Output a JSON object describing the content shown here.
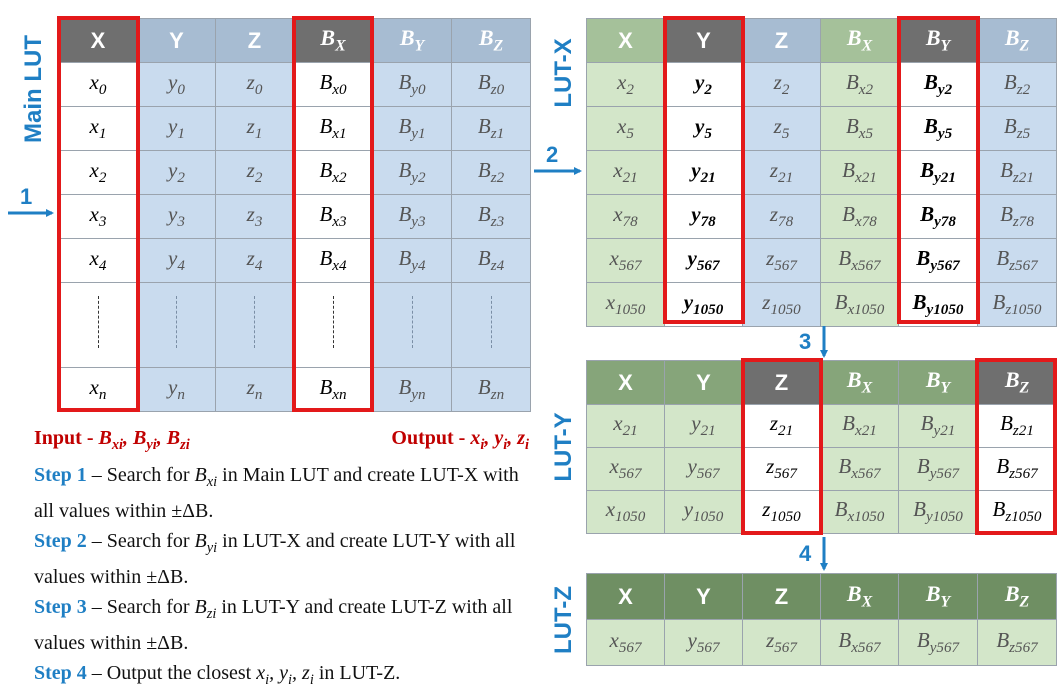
{
  "main_lut": {
    "label": "Main LUT",
    "headers": [
      "X",
      "Y",
      "Z",
      "B_X",
      "B_Y",
      "B_Z"
    ],
    "rows": [
      [
        "x_0",
        "y_0",
        "z_0",
        "B_x0",
        "B_y0",
        "B_z0"
      ],
      [
        "x_1",
        "y_1",
        "z_1",
        "B_x1",
        "B_y1",
        "B_z1"
      ],
      [
        "x_2",
        "y_2",
        "z_2",
        "B_x2",
        "B_y2",
        "B_z2"
      ],
      [
        "x_3",
        "y_3",
        "z_3",
        "B_x3",
        "B_y3",
        "B_z3"
      ],
      [
        "x_4",
        "y_4",
        "z_4",
        "B_x4",
        "B_y4",
        "B_z4"
      ]
    ],
    "last_row": [
      "x_n",
      "y_n",
      "z_n",
      "B_xn",
      "B_yn",
      "B_zn"
    ]
  },
  "lut_x": {
    "label": "LUT-X",
    "headers": [
      "X",
      "Y",
      "Z",
      "B_X",
      "B_Y",
      "B_Z"
    ],
    "rows": [
      [
        "x_2",
        "y_2",
        "z_2",
        "B_x2",
        "B_y2",
        "B_z2"
      ],
      [
        "x_5",
        "y_5",
        "z_5",
        "B_x5",
        "B_y5",
        "B_z5"
      ],
      [
        "x_21",
        "y_21",
        "z_21",
        "B_x21",
        "B_y21",
        "B_z21"
      ],
      [
        "x_78",
        "y_78",
        "z_78",
        "B_x78",
        "B_y78",
        "B_z78"
      ],
      [
        "x_567",
        "y_567",
        "z_567",
        "B_x567",
        "B_y567",
        "B_z567"
      ],
      [
        "x_1050",
        "y_1050",
        "z_1050",
        "B_x1050",
        "B_y1050",
        "B_z1050"
      ]
    ]
  },
  "lut_y": {
    "label": "LUT-Y",
    "headers": [
      "X",
      "Y",
      "Z",
      "B_X",
      "B_Y",
      "B_Z"
    ],
    "rows": [
      [
        "x_21",
        "y_21",
        "z_21",
        "B_x21",
        "B_y21",
        "B_z21"
      ],
      [
        "x_567",
        "y_567",
        "z_567",
        "B_x567",
        "B_y567",
        "B_z567"
      ],
      [
        "x_1050",
        "y_1050",
        "z_1050",
        "B_x1050",
        "B_y1050",
        "B_z1050"
      ]
    ]
  },
  "lut_z": {
    "label": "LUT-Z",
    "headers": [
      "X",
      "Y",
      "Z",
      "B_X",
      "B_Y",
      "B_Z"
    ],
    "rows": [
      [
        "x_567",
        "y_567",
        "z_567",
        "B_x567",
        "B_y567",
        "B_z567"
      ]
    ]
  },
  "step_numbers": [
    "1",
    "2",
    "3",
    "4"
  ],
  "notes": {
    "input_label": "Input -",
    "input_vars": "B_xi, B_yi, B_zi",
    "output_label": "Output -",
    "output_vars": "x_i, y_i, z_i",
    "steps": [
      {
        "label": "Step 1",
        "pre": " – Search for ",
        "var": "B_xi",
        "post": " in Main LUT and create LUT-X with all values within ±ΔB."
      },
      {
        "label": "Step 2",
        "pre": " – Search for ",
        "var": "B_yi",
        "post": " in LUT-X and create LUT-Y with all values within ±ΔB."
      },
      {
        "label": "Step 3",
        "pre": " – Search for ",
        "var": "B_zi",
        "post": " in LUT-Y and create LUT-Z with all values within ±ΔB."
      },
      {
        "label": "Step 4",
        "pre": " – Output the closest ",
        "var": "x_i, y_i, z_i",
        "post": " in LUT-Z."
      }
    ]
  },
  "colors": {
    "highlight_red": "#e3191a",
    "arrow_blue": "#1f7fc4",
    "header_dark": "#6f6f6f",
    "blue_cell": "#c9dbee",
    "green_cell": "#d3e6c9"
  }
}
